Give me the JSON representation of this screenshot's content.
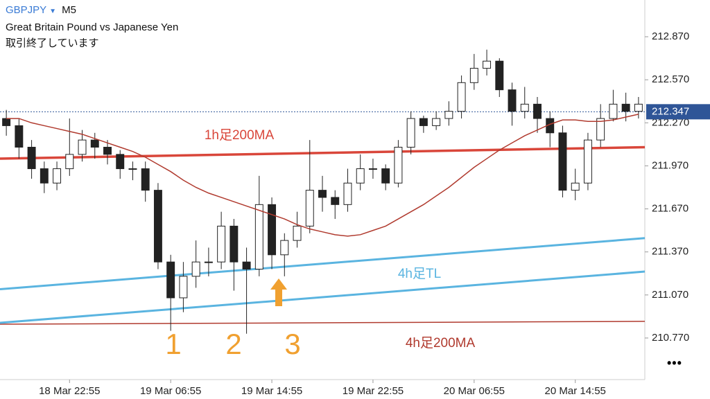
{
  "header": {
    "symbol": "GBPJPY",
    "timeframe": "M5",
    "name": "Great Britain Pound vs Japanese Yen",
    "status": "取引終了しています"
  },
  "chart_data": {
    "type": "candlestick",
    "categories": [
      null,
      null,
      null,
      null,
      null,
      "18 Mar 22:55",
      null,
      null,
      null,
      null,
      null,
      null,
      null,
      "19 Mar 06:55",
      null,
      null,
      null,
      null,
      null,
      null,
      null,
      "19 Mar 14:55",
      null,
      null,
      null,
      null,
      null,
      null,
      null,
      "19 Mar 22:55",
      null,
      null,
      null,
      null,
      null,
      null,
      null,
      "20 Mar 06:55",
      null,
      null,
      null,
      null,
      null,
      null,
      null,
      "20 Mar 14:55",
      null,
      null,
      null,
      null,
      null
    ],
    "open": [
      212.3,
      212.25,
      212.1,
      211.95,
      211.85,
      211.95,
      212.05,
      212.15,
      212.1,
      212.05,
      211.95,
      211.95,
      211.8,
      211.3,
      211.05,
      211.2,
      211.3,
      211.3,
      211.55,
      211.3,
      211.25,
      211.7,
      211.35,
      211.45,
      211.55,
      211.8,
      211.75,
      211.7,
      211.85,
      211.95,
      211.95,
      211.85,
      212.1,
      212.3,
      212.25,
      212.3,
      212.35,
      212.55,
      212.65,
      212.7,
      212.5,
      212.35,
      212.4,
      212.3,
      212.2,
      211.8,
      211.85,
      212.15,
      212.3,
      212.4,
      212.35
    ],
    "high": [
      212.36,
      212.3,
      212.15,
      212.0,
      212.0,
      212.3,
      212.22,
      212.2,
      212.15,
      212.08,
      212.0,
      212.0,
      211.85,
      211.35,
      211.3,
      211.45,
      211.4,
      211.65,
      211.6,
      211.4,
      211.9,
      211.75,
      211.5,
      211.65,
      212.15,
      211.9,
      211.8,
      211.95,
      212.05,
      212.02,
      211.98,
      212.15,
      212.35,
      212.32,
      212.35,
      212.42,
      212.6,
      212.75,
      212.78,
      212.72,
      212.55,
      212.52,
      212.45,
      212.35,
      212.25,
      211.95,
      212.2,
      212.4,
      212.5,
      212.48,
      212.45
    ],
    "low": [
      212.18,
      212.02,
      211.88,
      211.78,
      211.8,
      211.9,
      212.0,
      212.02,
      211.98,
      211.88,
      211.87,
      211.72,
      211.25,
      210.82,
      210.95,
      211.12,
      211.2,
      211.25,
      211.1,
      210.8,
      211.2,
      211.25,
      211.2,
      211.4,
      211.5,
      211.65,
      211.6,
      211.65,
      211.8,
      211.88,
      211.8,
      211.82,
      212.05,
      212.2,
      212.22,
      212.25,
      212.3,
      212.5,
      212.6,
      212.45,
      212.25,
      212.3,
      212.2,
      212.1,
      211.75,
      211.73,
      211.8,
      212.1,
      212.28,
      212.28,
      212.3
    ],
    "close": [
      212.25,
      212.1,
      211.95,
      211.85,
      211.95,
      212.05,
      212.15,
      212.1,
      212.05,
      211.95,
      211.95,
      211.8,
      211.3,
      211.05,
      211.2,
      211.3,
      211.3,
      211.55,
      211.3,
      211.25,
      211.7,
      211.35,
      211.45,
      211.55,
      211.8,
      211.75,
      211.7,
      211.85,
      211.95,
      211.95,
      211.85,
      212.1,
      212.3,
      212.25,
      212.3,
      212.35,
      212.55,
      212.65,
      212.7,
      212.5,
      212.35,
      212.4,
      212.3,
      212.2,
      211.8,
      211.85,
      212.15,
      212.3,
      212.4,
      212.35,
      212.4
    ],
    "color": "#222222",
    "ma": {
      "color": "#b03a2e",
      "values": [
        212.3,
        212.3,
        212.27,
        212.25,
        212.23,
        212.21,
        212.19,
        212.16,
        212.13,
        212.1,
        212.07,
        212.03,
        211.98,
        211.93,
        211.87,
        211.82,
        211.78,
        211.75,
        211.72,
        211.69,
        211.66,
        211.63,
        211.6,
        211.56,
        211.53,
        211.51,
        211.49,
        211.48,
        211.49,
        211.52,
        211.55,
        211.6,
        211.65,
        211.7,
        211.76,
        211.82,
        211.89,
        211.96,
        212.02,
        212.08,
        212.13,
        212.18,
        212.22,
        212.26,
        212.29,
        212.29,
        212.28,
        212.28,
        212.29,
        212.31,
        212.33
      ]
    },
    "ma_1h": {
      "name": "1h足200MA",
      "color": "#d9463a",
      "values": [
        212.02,
        212.1
      ]
    },
    "trendline": {
      "name": "4h足TL",
      "color": "#5ab4e0",
      "lines": [
        [
          211.11,
          211.466
        ],
        [
          210.876,
          211.233
        ]
      ]
    },
    "ma_4h": {
      "name": "4h足200MA",
      "color": "#b03a2e",
      "values": [
        210.866,
        210.886
      ]
    },
    "last_price": {
      "value": 212.347,
      "label": "212.347",
      "color": "#2f5597"
    },
    "annotations": [
      {
        "text": "1",
        "color": "#f0a030"
      },
      {
        "text": "2",
        "color": "#f0a030"
      },
      {
        "text": "3",
        "color": "#f0a030"
      }
    ],
    "ylim": [
      210.48,
      213.126
    ],
    "yticks": [
      {
        "value": 210.77,
        "label": "210.770"
      },
      {
        "value": 211.07,
        "label": "211.070"
      },
      {
        "value": 211.37,
        "label": "211.370"
      },
      {
        "value": 211.67,
        "label": "211.670"
      },
      {
        "value": 211.97,
        "label": "211.970"
      },
      {
        "value": 212.27,
        "label": "212.270"
      },
      {
        "value": 212.57,
        "label": "212.570"
      },
      {
        "value": 212.87,
        "label": "212.870"
      }
    ]
  }
}
